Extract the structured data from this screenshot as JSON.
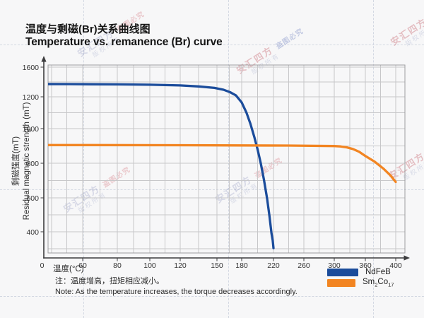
{
  "header": {
    "title_zh": "温度与剩磁(Br)关系曲线图",
    "title_en": "Temperature vs. remanence (Br) curve"
  },
  "chart_data": {
    "type": "line",
    "xlabel": "温度(°C)",
    "ylabel_zh": "剩磁强度(mT)",
    "ylabel_en": "Residual magnetic strength (mT)",
    "x_ticks": [
      0,
      60,
      80,
      100,
      120,
      150,
      180,
      220,
      260,
      300,
      360,
      400
    ],
    "y_ticks": [
      0,
      400,
      600,
      800,
      1000,
      1200,
      1600
    ],
    "grid": true,
    "legend_position": "bottom-right",
    "series": [
      {
        "name": "NdFeB",
        "color": "#1b4c9b",
        "display": [
          [
            "NdFeB",
            false
          ]
        ],
        "points": [
          [
            0,
            1372
          ],
          [
            40,
            1371
          ],
          [
            80,
            1368
          ],
          [
            100,
            1363
          ],
          [
            120,
            1353
          ],
          [
            135,
            1340
          ],
          [
            148,
            1320
          ],
          [
            158,
            1295
          ],
          [
            166,
            1262
          ],
          [
            173,
            1220
          ],
          [
            180,
            1165
          ],
          [
            186,
            1100
          ],
          [
            191,
            1030
          ],
          [
            196,
            950
          ],
          [
            200,
            880
          ],
          [
            204,
            800
          ],
          [
            208,
            705
          ],
          [
            212,
            595
          ],
          [
            215,
            490
          ],
          [
            217.5,
            375
          ],
          [
            219,
            270
          ],
          [
            220,
            150
          ]
        ]
      },
      {
        "name": "Sm2Co17",
        "color": "#f28522",
        "display": [
          [
            "Sm",
            false
          ],
          [
            "2",
            true
          ],
          [
            "Co",
            false
          ],
          [
            "17",
            true
          ]
        ],
        "points": [
          [
            0,
            905
          ],
          [
            60,
            905
          ],
          [
            120,
            904
          ],
          [
            180,
            903
          ],
          [
            240,
            902
          ],
          [
            300,
            899
          ],
          [
            312,
            897
          ],
          [
            324,
            892
          ],
          [
            336,
            882
          ],
          [
            348,
            866
          ],
          [
            360,
            842
          ],
          [
            372,
            810
          ],
          [
            384,
            768
          ],
          [
            393,
            730
          ],
          [
            400,
            692
          ]
        ]
      }
    ]
  },
  "note": {
    "line_zh": "注：温度增高，扭矩相应减小。",
    "line_en": "Note: As the temperature increases, the torque decreases accordingly."
  },
  "watermark": {
    "brand": "安汇四方",
    "rights": "版权所有",
    "warning": "盗图必究"
  }
}
